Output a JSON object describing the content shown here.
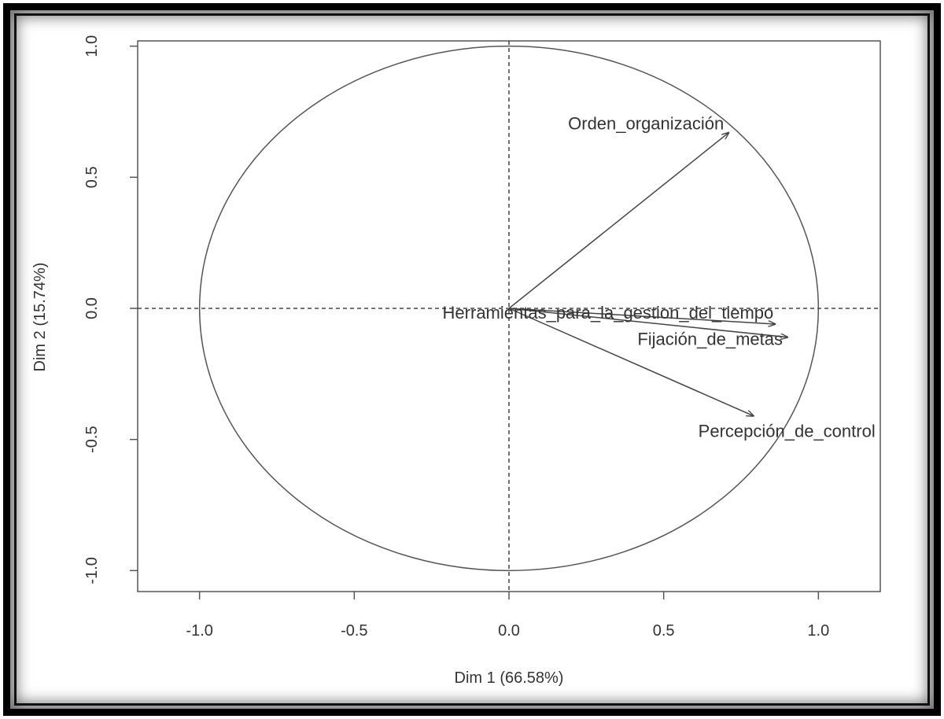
{
  "chart_data": {
    "type": "scatter",
    "subtype": "pca-correlation-circle",
    "xlabel": "Dim 1 (66.58%)",
    "ylabel": "Dim 2 (15.74%)",
    "xlim": [
      -1.2,
      1.2
    ],
    "ylim": [
      -1.08,
      1.02
    ],
    "xticks": [
      -1.0,
      -0.5,
      0.0,
      0.5,
      1.0
    ],
    "yticks": [
      -1.0,
      -0.5,
      0.0,
      0.5,
      1.0
    ],
    "xtick_labels": [
      "-1.0",
      "-0.5",
      "0.0",
      "0.5",
      "1.0"
    ],
    "ytick_labels": [
      "-1.0",
      "-0.5",
      "0.0",
      "0.5",
      "1.0"
    ],
    "unit_circle": true,
    "reference_lines": "dashed at x=0 and y=0",
    "variables": [
      {
        "name": "Orden_organización",
        "x": 0.71,
        "y": 0.67
      },
      {
        "name": "Herramientas_para_la_gestion_del_tiempo",
        "x": 0.86,
        "y": -0.06
      },
      {
        "name": "Fijación_de_metas",
        "x": 0.9,
        "y": -0.11
      },
      {
        "name": "Percepción_de_control",
        "x": 0.79,
        "y": -0.41
      }
    ],
    "colors": {
      "axis": "#555555",
      "arrow": "#444444",
      "circle": "#555555",
      "text": "#333333"
    }
  }
}
